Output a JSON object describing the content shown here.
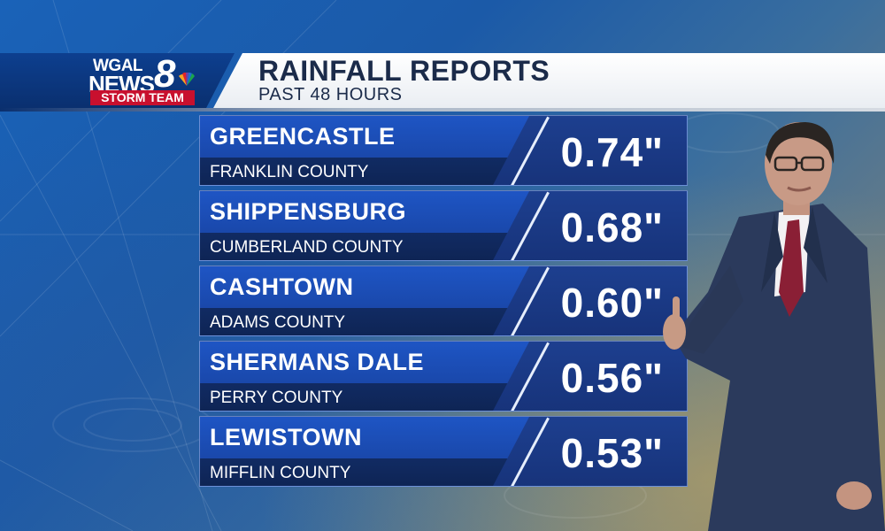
{
  "header": {
    "logo": {
      "line1": "WGAL",
      "line2": "NEWS",
      "number": "8",
      "badge": "STORM TEAM"
    },
    "title": "RAINFALL REPORTS",
    "subtitle": "PAST 48 HOURS"
  },
  "reports": [
    {
      "city": "GREENCASTLE",
      "county": "FRANKLIN COUNTY",
      "amount": "0.74\""
    },
    {
      "city": "SHIPPENSBURG",
      "county": "CUMBERLAND COUNTY",
      "amount": "0.68\""
    },
    {
      "city": "CASHTOWN",
      "county": "ADAMS COUNTY",
      "amount": "0.60\""
    },
    {
      "city": "SHERMANS DALE",
      "county": "PERRY COUNTY",
      "amount": "0.56\""
    },
    {
      "city": "LEWISTOWN",
      "county": "MIFFLIN COUNTY",
      "amount": "0.53\""
    }
  ],
  "colors": {
    "brand_blue": "#0a2f6e",
    "storm_red": "#c8102e",
    "row_blue": "#1a49ad"
  },
  "icons": {
    "network": "peacock-icon",
    "presenter": "presenter-figure"
  }
}
